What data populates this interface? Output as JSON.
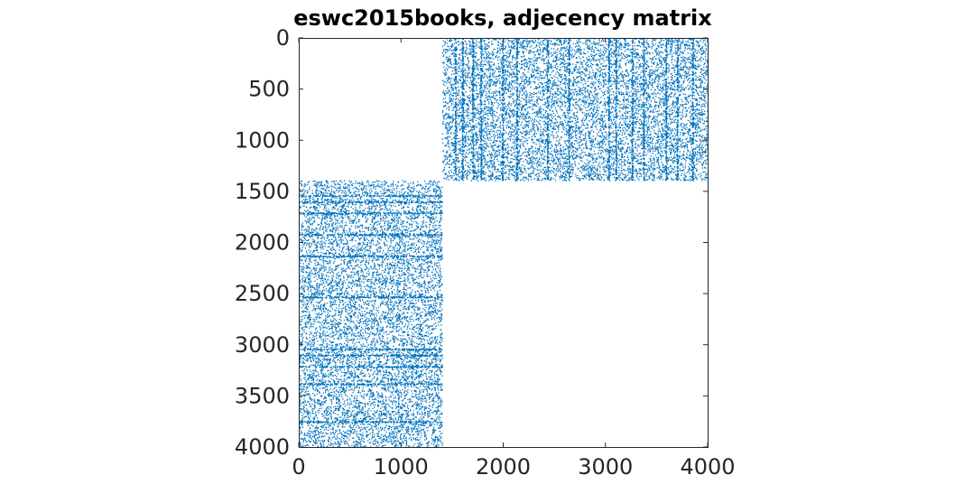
{
  "chart_data": {
    "type": "scatter",
    "title": "eswc2015books, adjecency matrix",
    "xlabel": "",
    "ylabel": "",
    "xlim": [
      0,
      4000
    ],
    "ylim": [
      0,
      4000
    ],
    "y_reversed": true,
    "grid": false,
    "xticks": [
      "0",
      "1000",
      "2000",
      "3000",
      "4000"
    ],
    "yticks": [
      "0",
      "500",
      "1000",
      "1500",
      "2000",
      "2500",
      "3000",
      "3500",
      "4000"
    ],
    "color": "#0072BD",
    "blocks": [
      {
        "name": "",
        "x_range": [
          1400,
          4000
        ],
        "y_range": [
          0,
          1390
        ]
      },
      {
        "name": "",
        "x_range": [
          0,
          1400
        ],
        "y_range": [
          1390,
          4000
        ]
      }
    ],
    "dense_columns": [
      1530,
      1600,
      1700,
      1780,
      1990,
      2130,
      2430,
      2640,
      3030,
      3100,
      3260,
      3370,
      3590,
      3700,
      3850
    ],
    "dense_rows": [
      1540,
      1600,
      1710,
      1920,
      2130,
      2530,
      3040,
      3100,
      3210,
      3380,
      3750
    ]
  }
}
